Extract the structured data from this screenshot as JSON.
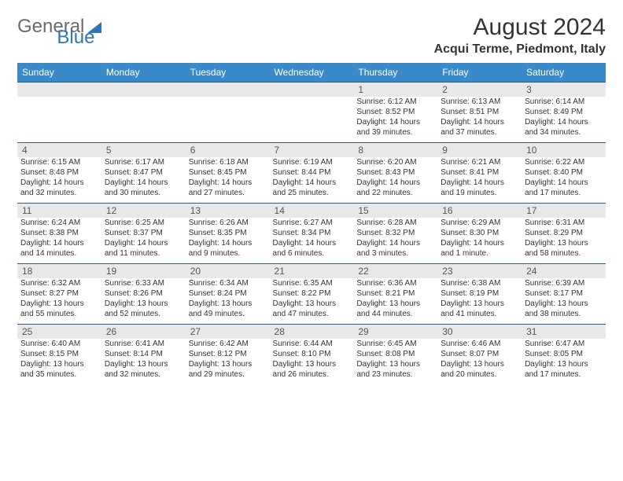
{
  "logo": {
    "word1": "General",
    "word2": "Blue"
  },
  "title": "August 2024",
  "location": "Acqui Terme, Piedmont, Italy",
  "colors": {
    "header_bg": "#3a8ac9",
    "header_text": "#ffffff",
    "daynum_bg": "#e8e8e8",
    "week_border": "#2f5d8a",
    "logo_gray": "#6a6a6a",
    "logo_blue": "#2e75b6",
    "body_text": "#333333"
  },
  "daysOfWeek": [
    "Sunday",
    "Monday",
    "Tuesday",
    "Wednesday",
    "Thursday",
    "Friday",
    "Saturday"
  ],
  "weeks": [
    [
      null,
      null,
      null,
      null,
      {
        "n": "1",
        "sr": "Sunrise: 6:12 AM",
        "ss": "Sunset: 8:52 PM",
        "d1": "Daylight: 14 hours",
        "d2": "and 39 minutes."
      },
      {
        "n": "2",
        "sr": "Sunrise: 6:13 AM",
        "ss": "Sunset: 8:51 PM",
        "d1": "Daylight: 14 hours",
        "d2": "and 37 minutes."
      },
      {
        "n": "3",
        "sr": "Sunrise: 6:14 AM",
        "ss": "Sunset: 8:49 PM",
        "d1": "Daylight: 14 hours",
        "d2": "and 34 minutes."
      }
    ],
    [
      {
        "n": "4",
        "sr": "Sunrise: 6:15 AM",
        "ss": "Sunset: 8:48 PM",
        "d1": "Daylight: 14 hours",
        "d2": "and 32 minutes."
      },
      {
        "n": "5",
        "sr": "Sunrise: 6:17 AM",
        "ss": "Sunset: 8:47 PM",
        "d1": "Daylight: 14 hours",
        "d2": "and 30 minutes."
      },
      {
        "n": "6",
        "sr": "Sunrise: 6:18 AM",
        "ss": "Sunset: 8:45 PM",
        "d1": "Daylight: 14 hours",
        "d2": "and 27 minutes."
      },
      {
        "n": "7",
        "sr": "Sunrise: 6:19 AM",
        "ss": "Sunset: 8:44 PM",
        "d1": "Daylight: 14 hours",
        "d2": "and 25 minutes."
      },
      {
        "n": "8",
        "sr": "Sunrise: 6:20 AM",
        "ss": "Sunset: 8:43 PM",
        "d1": "Daylight: 14 hours",
        "d2": "and 22 minutes."
      },
      {
        "n": "9",
        "sr": "Sunrise: 6:21 AM",
        "ss": "Sunset: 8:41 PM",
        "d1": "Daylight: 14 hours",
        "d2": "and 19 minutes."
      },
      {
        "n": "10",
        "sr": "Sunrise: 6:22 AM",
        "ss": "Sunset: 8:40 PM",
        "d1": "Daylight: 14 hours",
        "d2": "and 17 minutes."
      }
    ],
    [
      {
        "n": "11",
        "sr": "Sunrise: 6:24 AM",
        "ss": "Sunset: 8:38 PM",
        "d1": "Daylight: 14 hours",
        "d2": "and 14 minutes."
      },
      {
        "n": "12",
        "sr": "Sunrise: 6:25 AM",
        "ss": "Sunset: 8:37 PM",
        "d1": "Daylight: 14 hours",
        "d2": "and 11 minutes."
      },
      {
        "n": "13",
        "sr": "Sunrise: 6:26 AM",
        "ss": "Sunset: 8:35 PM",
        "d1": "Daylight: 14 hours",
        "d2": "and 9 minutes."
      },
      {
        "n": "14",
        "sr": "Sunrise: 6:27 AM",
        "ss": "Sunset: 8:34 PM",
        "d1": "Daylight: 14 hours",
        "d2": "and 6 minutes."
      },
      {
        "n": "15",
        "sr": "Sunrise: 6:28 AM",
        "ss": "Sunset: 8:32 PM",
        "d1": "Daylight: 14 hours",
        "d2": "and 3 minutes."
      },
      {
        "n": "16",
        "sr": "Sunrise: 6:29 AM",
        "ss": "Sunset: 8:30 PM",
        "d1": "Daylight: 14 hours",
        "d2": "and 1 minute."
      },
      {
        "n": "17",
        "sr": "Sunrise: 6:31 AM",
        "ss": "Sunset: 8:29 PM",
        "d1": "Daylight: 13 hours",
        "d2": "and 58 minutes."
      }
    ],
    [
      {
        "n": "18",
        "sr": "Sunrise: 6:32 AM",
        "ss": "Sunset: 8:27 PM",
        "d1": "Daylight: 13 hours",
        "d2": "and 55 minutes."
      },
      {
        "n": "19",
        "sr": "Sunrise: 6:33 AM",
        "ss": "Sunset: 8:26 PM",
        "d1": "Daylight: 13 hours",
        "d2": "and 52 minutes."
      },
      {
        "n": "20",
        "sr": "Sunrise: 6:34 AM",
        "ss": "Sunset: 8:24 PM",
        "d1": "Daylight: 13 hours",
        "d2": "and 49 minutes."
      },
      {
        "n": "21",
        "sr": "Sunrise: 6:35 AM",
        "ss": "Sunset: 8:22 PM",
        "d1": "Daylight: 13 hours",
        "d2": "and 47 minutes."
      },
      {
        "n": "22",
        "sr": "Sunrise: 6:36 AM",
        "ss": "Sunset: 8:21 PM",
        "d1": "Daylight: 13 hours",
        "d2": "and 44 minutes."
      },
      {
        "n": "23",
        "sr": "Sunrise: 6:38 AM",
        "ss": "Sunset: 8:19 PM",
        "d1": "Daylight: 13 hours",
        "d2": "and 41 minutes."
      },
      {
        "n": "24",
        "sr": "Sunrise: 6:39 AM",
        "ss": "Sunset: 8:17 PM",
        "d1": "Daylight: 13 hours",
        "d2": "and 38 minutes."
      }
    ],
    [
      {
        "n": "25",
        "sr": "Sunrise: 6:40 AM",
        "ss": "Sunset: 8:15 PM",
        "d1": "Daylight: 13 hours",
        "d2": "and 35 minutes."
      },
      {
        "n": "26",
        "sr": "Sunrise: 6:41 AM",
        "ss": "Sunset: 8:14 PM",
        "d1": "Daylight: 13 hours",
        "d2": "and 32 minutes."
      },
      {
        "n": "27",
        "sr": "Sunrise: 6:42 AM",
        "ss": "Sunset: 8:12 PM",
        "d1": "Daylight: 13 hours",
        "d2": "and 29 minutes."
      },
      {
        "n": "28",
        "sr": "Sunrise: 6:44 AM",
        "ss": "Sunset: 8:10 PM",
        "d1": "Daylight: 13 hours",
        "d2": "and 26 minutes."
      },
      {
        "n": "29",
        "sr": "Sunrise: 6:45 AM",
        "ss": "Sunset: 8:08 PM",
        "d1": "Daylight: 13 hours",
        "d2": "and 23 minutes."
      },
      {
        "n": "30",
        "sr": "Sunrise: 6:46 AM",
        "ss": "Sunset: 8:07 PM",
        "d1": "Daylight: 13 hours",
        "d2": "and 20 minutes."
      },
      {
        "n": "31",
        "sr": "Sunrise: 6:47 AM",
        "ss": "Sunset: 8:05 PM",
        "d1": "Daylight: 13 hours",
        "d2": "and 17 minutes."
      }
    ]
  ]
}
